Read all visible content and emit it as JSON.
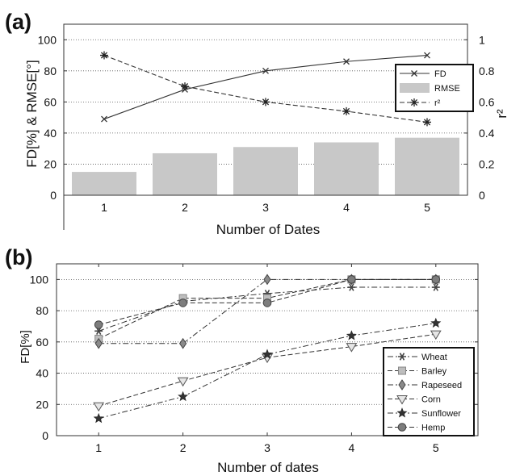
{
  "chart_data": [
    {
      "panel_label": "(a)",
      "type": "bar+line",
      "xlabel": "Number of Dates",
      "ylabel": "FD[%] & RMSE[°]",
      "ylabel_right": "r²",
      "categories": [
        1,
        2,
        3,
        4,
        5
      ],
      "xlim": [
        0.5,
        5.5
      ],
      "ylim": [
        0,
        110
      ],
      "ylim_right": [
        0,
        1.1
      ],
      "yticks": [
        0,
        20,
        40,
        60,
        80,
        100
      ],
      "yticks_right": [
        0,
        0.2,
        0.4,
        0.6,
        0.8,
        1
      ],
      "grid": "horizontal dotted",
      "legend_position": "right",
      "series": [
        {
          "name": "FD",
          "kind": "line",
          "axis": "left",
          "marker": "x",
          "line": "solid",
          "color": "#333333",
          "values": [
            49,
            68,
            80,
            86,
            90
          ]
        },
        {
          "name": "RMSE",
          "kind": "bar",
          "axis": "left",
          "color": "#c8c8c8",
          "values": [
            15,
            27,
            31,
            34,
            37
          ]
        },
        {
          "name": "r²",
          "kind": "line",
          "axis": "right",
          "marker": "*",
          "line": "dashed",
          "color": "#333333",
          "values": [
            0.9,
            0.7,
            0.6,
            0.54,
            0.47
          ]
        }
      ]
    },
    {
      "panel_label": "(b)",
      "type": "line",
      "xlabel": "Number of dates",
      "ylabel": "FD[%]",
      "categories": [
        1,
        2,
        3,
        4,
        5
      ],
      "xlim": [
        0.5,
        5.5
      ],
      "ylim": [
        0,
        110
      ],
      "yticks": [
        0,
        20,
        40,
        60,
        80,
        100
      ],
      "grid": "horizontal dotted",
      "legend_position": "bottom-right",
      "series": [
        {
          "name": "Wheat",
          "marker": "star6",
          "dash": "dashdot",
          "values": [
            67,
            86,
            91,
            95,
            95
          ]
        },
        {
          "name": "Barley",
          "marker": "square",
          "dash": "dashed",
          "values": [
            62,
            88,
            88,
            100,
            100
          ]
        },
        {
          "name": "Rapeseed",
          "marker": "diamond",
          "dash": "dashdot",
          "values": [
            59,
            59,
            100,
            100,
            100
          ]
        },
        {
          "name": "Corn",
          "marker": "triangle-down",
          "dash": "dashed",
          "values": [
            19,
            35,
            50,
            57,
            65
          ]
        },
        {
          "name": "Sunflower",
          "marker": "star5",
          "dash": "dashdot",
          "values": [
            11,
            25,
            52,
            64,
            72
          ]
        },
        {
          "name": "Hemp",
          "marker": "circle",
          "dash": "dashed",
          "values": [
            71,
            85,
            85,
            100,
            100
          ]
        }
      ]
    }
  ]
}
